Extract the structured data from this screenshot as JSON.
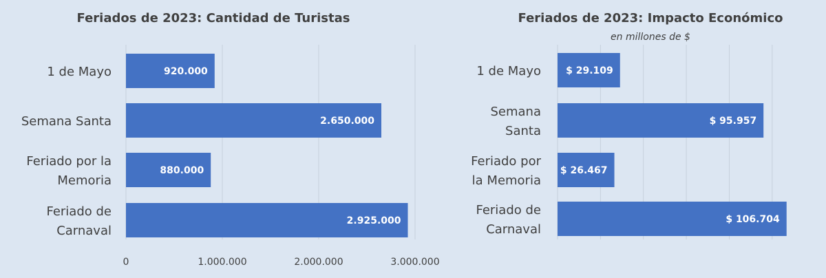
{
  "colors": {
    "background": "#dce6f2",
    "bar": "#4472c4",
    "grid": "#c6d0dc",
    "title": "#404040",
    "label": "#404040",
    "bar_label": "#ffffff"
  },
  "chart_data": [
    {
      "type": "bar",
      "orientation": "horizontal",
      "title": "Feriados de 2023: Cantidad de Turistas",
      "subtitle": "",
      "categories": [
        [
          "1 de Mayo"
        ],
        [
          "Semana Santa"
        ],
        [
          "Feriado por la",
          "Memoria"
        ],
        [
          "Feriado de",
          "Carnaval"
        ]
      ],
      "values": [
        920000,
        2650000,
        880000,
        2925000
      ],
      "data_labels": [
        "920.000",
        "2.650.000",
        "880.000",
        "2.925.000"
      ],
      "xlim": [
        0,
        3000000
      ],
      "xticks": [
        0,
        1000000,
        2000000,
        3000000
      ],
      "xtick_labels": [
        "0",
        "1.000.000",
        "2.000.000",
        "3.000.000"
      ],
      "grid": true,
      "legend": "none"
    },
    {
      "type": "bar",
      "orientation": "horizontal",
      "title": "Feriados de 2023: Impacto Económico",
      "subtitle": "en millones de $",
      "categories": [
        [
          "1 de Mayo"
        ],
        [
          "Semana",
          "Santa"
        ],
        [
          "Feriado por",
          "la Memoria"
        ],
        [
          "Feriado de",
          "Carnaval"
        ]
      ],
      "values": [
        29109,
        95957,
        26467,
        106704
      ],
      "data_labels": [
        "$ 29.109",
        "$ 95.957",
        "$ 26.467",
        "$ 106.704"
      ],
      "xlim": [
        0,
        110000
      ],
      "xticks": [
        0,
        20000,
        40000,
        60000,
        80000,
        100000
      ],
      "xtick_labels": [],
      "grid": true,
      "legend": "none"
    }
  ]
}
